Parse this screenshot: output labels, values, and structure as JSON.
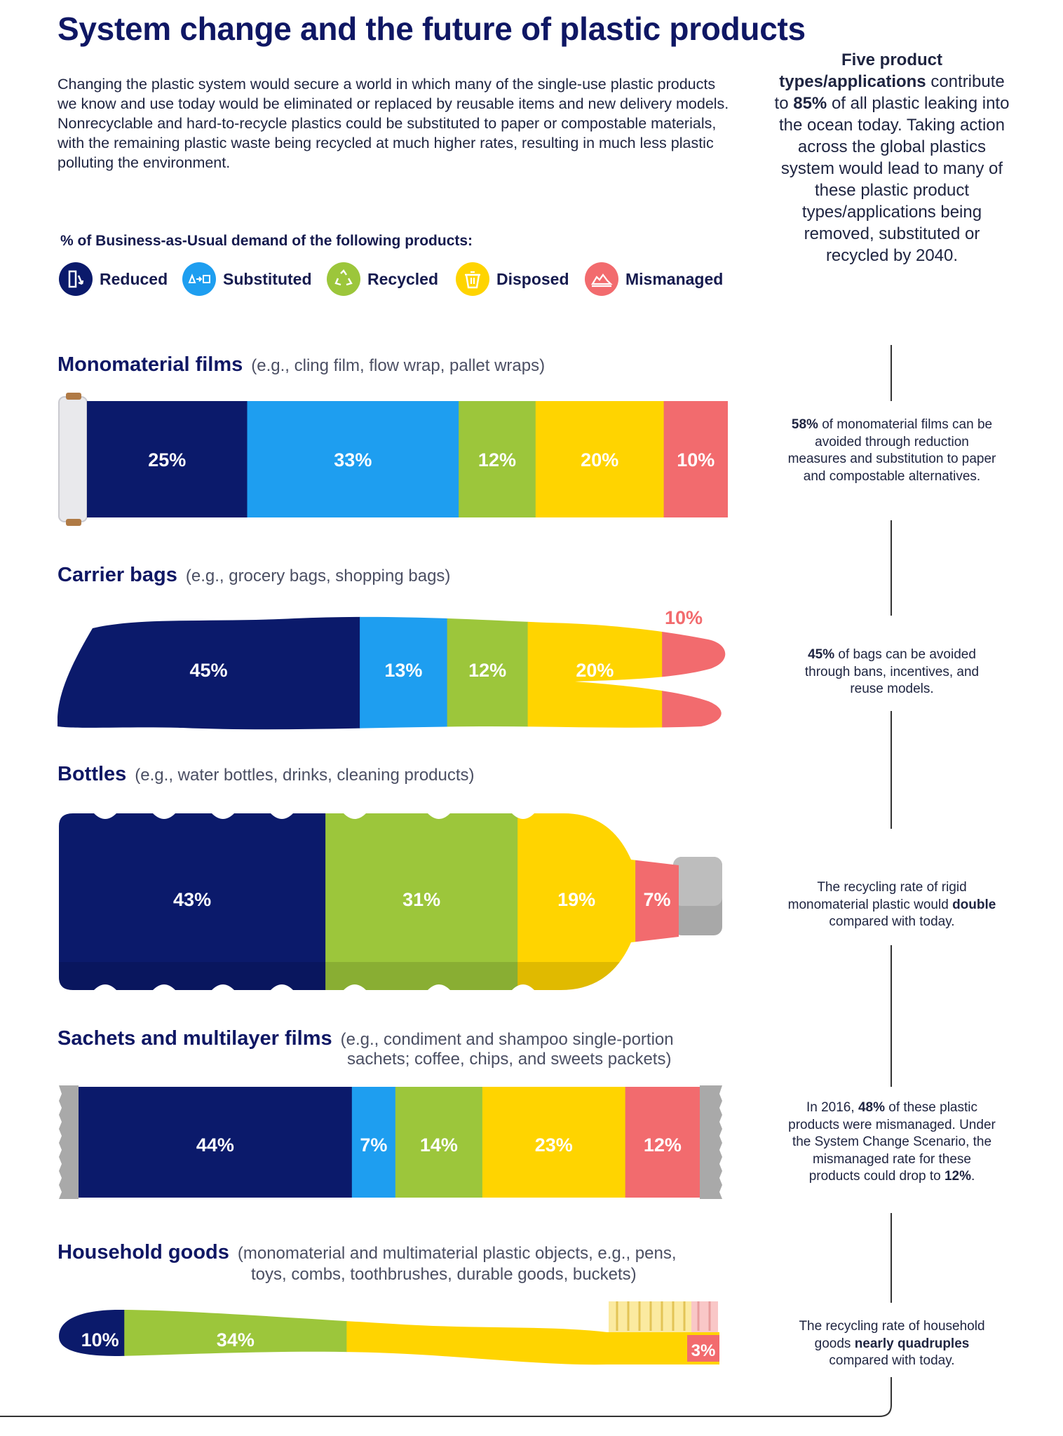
{
  "title": "System change and the future of plastic products",
  "intro": "Changing the plastic system would secure a world in which many of the single-use plastic products we know and use today would be eliminated or replaced by reusable items and new delivery models. Nonrecyclable and hard-to-recycle plastics could be substituted to paper or compostable materials, with the remaining plastic waste being recycled at much higher rates, resulting in much less plastic polluting the environment.",
  "legend": {
    "title": "% of Business-as-Usual demand of the following products:",
    "items": [
      {
        "label": "Reduced",
        "color": "#0b1a6b",
        "icon": "reduce-icon"
      },
      {
        "label": "Substituted",
        "color": "#1e9ef0",
        "icon": "substitute-icon"
      },
      {
        "label": "Recycled",
        "color": "#9cc63b",
        "icon": "recycle-icon"
      },
      {
        "label": "Disposed",
        "color": "#ffd400",
        "icon": "trash-bin-icon"
      },
      {
        "label": "Mismanaged",
        "color": "#f26b6e",
        "icon": "mismanaged-pile-icon"
      }
    ]
  },
  "sidebar": {
    "intro_bold": "Five product types/applications",
    "intro_pre": " contribute to ",
    "intro_pct": "85%",
    "intro_post": " of all plastic leaking into the ocean today. Taking action across the global plastics system would lead to many of these plastic product types/applications being removed, substituted or recycled by 2040.",
    "notes": [
      {
        "b1": "58%",
        "t1": " of monomaterial films can be avoided through reduction measures and substitution to paper and compostable alternatives."
      },
      {
        "b1": "45%",
        "t1": " of bags can be avoided through bans, incentives, and reuse models."
      },
      {
        "t0": "The recycling rate of rigid monomaterial plastic would ",
        "b1": "double",
        "t1": " compared with today."
      },
      {
        "t0": "In 2016, ",
        "b1": "48%",
        "t1": " of these plastic products were mismanaged. Under the System Change Scenario, the mismanaged rate for these products could drop to ",
        "b2": "12%",
        "t2": "."
      },
      {
        "t0": "The recycling rate of household goods ",
        "b1": "nearly quadruples",
        "t1": " compared with today."
      }
    ]
  },
  "chart_data": {
    "type": "bar",
    "stacked": true,
    "unit": "% of Business-as-Usual demand",
    "series_names": [
      "Reduced",
      "Substituted",
      "Recycled",
      "Disposed",
      "Mismanaged"
    ],
    "colors": [
      "#0b1a6b",
      "#1e9ef0",
      "#9cc63b",
      "#ffd400",
      "#f26b6e"
    ],
    "products": [
      {
        "name": "Monomaterial films",
        "example": "(e.g., cling film, flow wrap, pallet wraps)",
        "example2": "",
        "values": [
          25,
          33,
          12,
          20,
          10
        ],
        "labels": [
          "25%",
          "33%",
          "12%",
          "20%",
          "10%"
        ]
      },
      {
        "name": "Carrier bags",
        "example": "(e.g., grocery bags, shopping bags)",
        "example2": "",
        "values": [
          45,
          13,
          12,
          20,
          10
        ],
        "labels": [
          "45%",
          "13%",
          "12%",
          "20%",
          "10%"
        ]
      },
      {
        "name": "Bottles",
        "example": "(e.g., water bottles, drinks, cleaning products)",
        "example2": "",
        "values": [
          43,
          0,
          31,
          19,
          7
        ],
        "labels": [
          "43%",
          "",
          "31%",
          "19%",
          "7%"
        ]
      },
      {
        "name": "Sachets and multilayer films",
        "example": "(e.g., condiment and shampoo single-portion",
        "example2": "sachets; coffee, chips, and sweets packets)",
        "values": [
          44,
          7,
          14,
          23,
          12
        ],
        "labels": [
          "44%",
          "7%",
          "14%",
          "23%",
          "12%"
        ]
      },
      {
        "name": "Household goods",
        "example": "(monomaterial and multimaterial plastic objects, e.g., pens,",
        "example2": "toys, combs, toothbrushes, durable goods, buckets)",
        "values": [
          10,
          0,
          34,
          54,
          3
        ],
        "labels": [
          "10%",
          "",
          "34%",
          "54%",
          "3%"
        ]
      }
    ]
  }
}
